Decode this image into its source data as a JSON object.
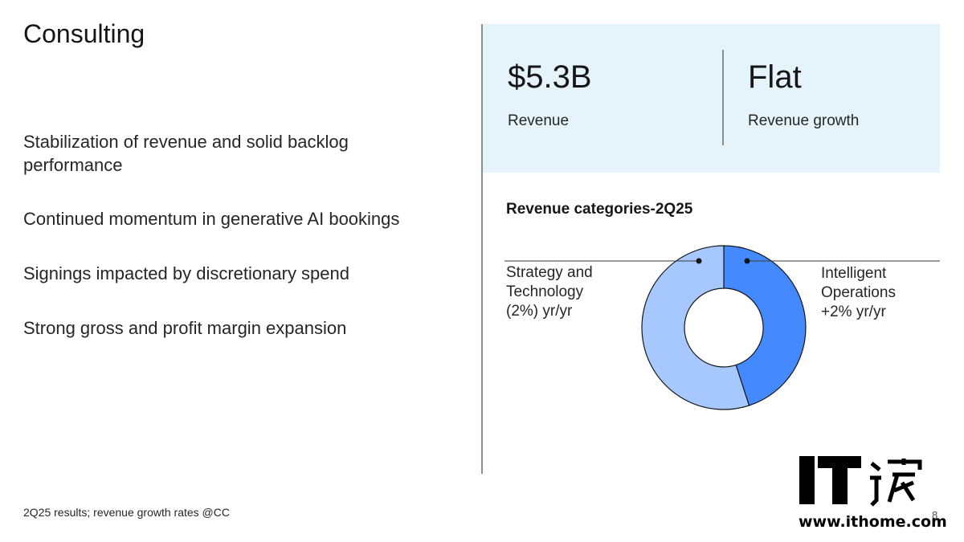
{
  "slide": {
    "title": "Consulting",
    "bullets": [
      "Stabilization of revenue and solid backlog performance",
      "Continued momentum in generative AI bookings",
      "Signings impacted by discretionary spend",
      "Strong gross and profit margin expansion"
    ],
    "footnote": "2Q25 results; revenue growth rates @CC",
    "page_number": "8"
  },
  "kpis": [
    {
      "value": "$5.3B",
      "label": "Revenue"
    },
    {
      "value": "Flat",
      "label": "Revenue growth"
    }
  ],
  "watermark": {
    "url": "www.ithome.com"
  },
  "colors": {
    "panel": "#e5f3fb",
    "dark_segment": "#4589ff",
    "light_segment": "#a6c8ff"
  },
  "chart_data": {
    "type": "pie",
    "title": "Revenue categories-2Q25",
    "donut": true,
    "slices": [
      {
        "label_lines": [
          "Intelligent",
          "Operations",
          "+2% yr/yr"
        ],
        "share": 0.45,
        "color": "#4589ff"
      },
      {
        "label_lines": [
          "Strategy and",
          "Technology",
          "(2%) yr/yr"
        ],
        "share": 0.55,
        "color": "#a6c8ff"
      }
    ]
  }
}
